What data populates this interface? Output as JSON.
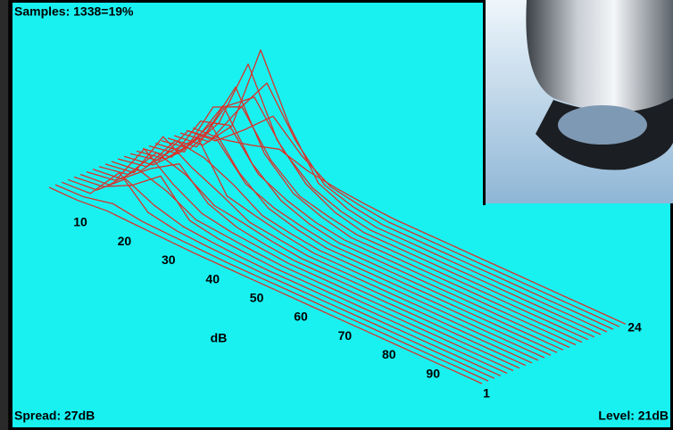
{
  "header": {
    "samples": "Samples: 1338=19%"
  },
  "footer": {
    "spread": "Spread: 27dB",
    "level": "Level: 21dB"
  },
  "plot": {
    "db_labels": [
      "10",
      "20",
      "30",
      "40",
      "50",
      "60",
      "70",
      "80",
      "90"
    ],
    "db_axis_title": "dB",
    "trace_first": "1",
    "trace_last": "24",
    "traces": [
      [
        0,
        0,
        3,
        2,
        1,
        0,
        0,
        0,
        0,
        0,
        0,
        0,
        0,
        0,
        0,
        0
      ],
      [
        0,
        1,
        8,
        3,
        2,
        1,
        0,
        0,
        0,
        0,
        0,
        0,
        0,
        0,
        0,
        0
      ],
      [
        0,
        2,
        40,
        10,
        4,
        2,
        1,
        0,
        0,
        0,
        0,
        0,
        0,
        0,
        0,
        0
      ],
      [
        0,
        3,
        30,
        15,
        6,
        3,
        1,
        0,
        0,
        0,
        0,
        0,
        0,
        0,
        0,
        0
      ],
      [
        0,
        4,
        20,
        45,
        10,
        4,
        2,
        0,
        0,
        0,
        0,
        0,
        0,
        0,
        0,
        0
      ],
      [
        0,
        3,
        35,
        25,
        8,
        5,
        2,
        0,
        0,
        0,
        0,
        0,
        0,
        0,
        0,
        0
      ],
      [
        0,
        5,
        55,
        30,
        12,
        6,
        3,
        0,
        0,
        0,
        0,
        0,
        0,
        0,
        0,
        0
      ],
      [
        0,
        4,
        30,
        50,
        20,
        8,
        3,
        0,
        0,
        0,
        0,
        0,
        0,
        0,
        0,
        0
      ],
      [
        0,
        6,
        45,
        35,
        15,
        10,
        4,
        0,
        0,
        0,
        0,
        0,
        0,
        0,
        0,
        0
      ],
      [
        0,
        5,
        60,
        40,
        25,
        8,
        4,
        0,
        0,
        0,
        0,
        0,
        0,
        0,
        0,
        0
      ],
      [
        0,
        4,
        40,
        70,
        20,
        12,
        5,
        0,
        0,
        0,
        0,
        0,
        0,
        0,
        0,
        0
      ],
      [
        0,
        6,
        50,
        45,
        30,
        10,
        4,
        0,
        0,
        0,
        0,
        0,
        0,
        0,
        0,
        0
      ],
      [
        0,
        5,
        35,
        80,
        40,
        15,
        6,
        0,
        0,
        0,
        0,
        0,
        0,
        0,
        0,
        0
      ],
      [
        0,
        7,
        55,
        60,
        25,
        12,
        5,
        0,
        0,
        0,
        0,
        0,
        0,
        0,
        0,
        0
      ],
      [
        0,
        6,
        40,
        95,
        45,
        18,
        6,
        0,
        0,
        0,
        0,
        0,
        0,
        0,
        0,
        0
      ],
      [
        0,
        5,
        60,
        70,
        30,
        15,
        5,
        0,
        0,
        0,
        0,
        0,
        0,
        0,
        0,
        0
      ],
      [
        0,
        6,
        45,
        110,
        50,
        20,
        8,
        0,
        0,
        0,
        0,
        0,
        0,
        0,
        0,
        0
      ],
      [
        0,
        5,
        70,
        85,
        40,
        14,
        6,
        0,
        0,
        0,
        0,
        0,
        0,
        0,
        0,
        0
      ],
      [
        0,
        6,
        50,
        130,
        60,
        25,
        8,
        0,
        0,
        0,
        0,
        0,
        0,
        0,
        0,
        0
      ],
      [
        0,
        5,
        65,
        90,
        45,
        18,
        6,
        0,
        0,
        0,
        0,
        0,
        0,
        0,
        0,
        0
      ],
      [
        0,
        4,
        40,
        140,
        70,
        20,
        6,
        0,
        0,
        0,
        0,
        0,
        0,
        0,
        0,
        0
      ],
      [
        0,
        5,
        55,
        100,
        50,
        15,
        5,
        0,
        0,
        0,
        0,
        0,
        0,
        0,
        0,
        0
      ],
      [
        0,
        3,
        30,
        60,
        30,
        10,
        4,
        0,
        0,
        0,
        0,
        0,
        0,
        0,
        0,
        0
      ],
      [
        0,
        2,
        10,
        20,
        10,
        5,
        2,
        0,
        0,
        0,
        0,
        0,
        0,
        0,
        0,
        0
      ]
    ]
  }
}
